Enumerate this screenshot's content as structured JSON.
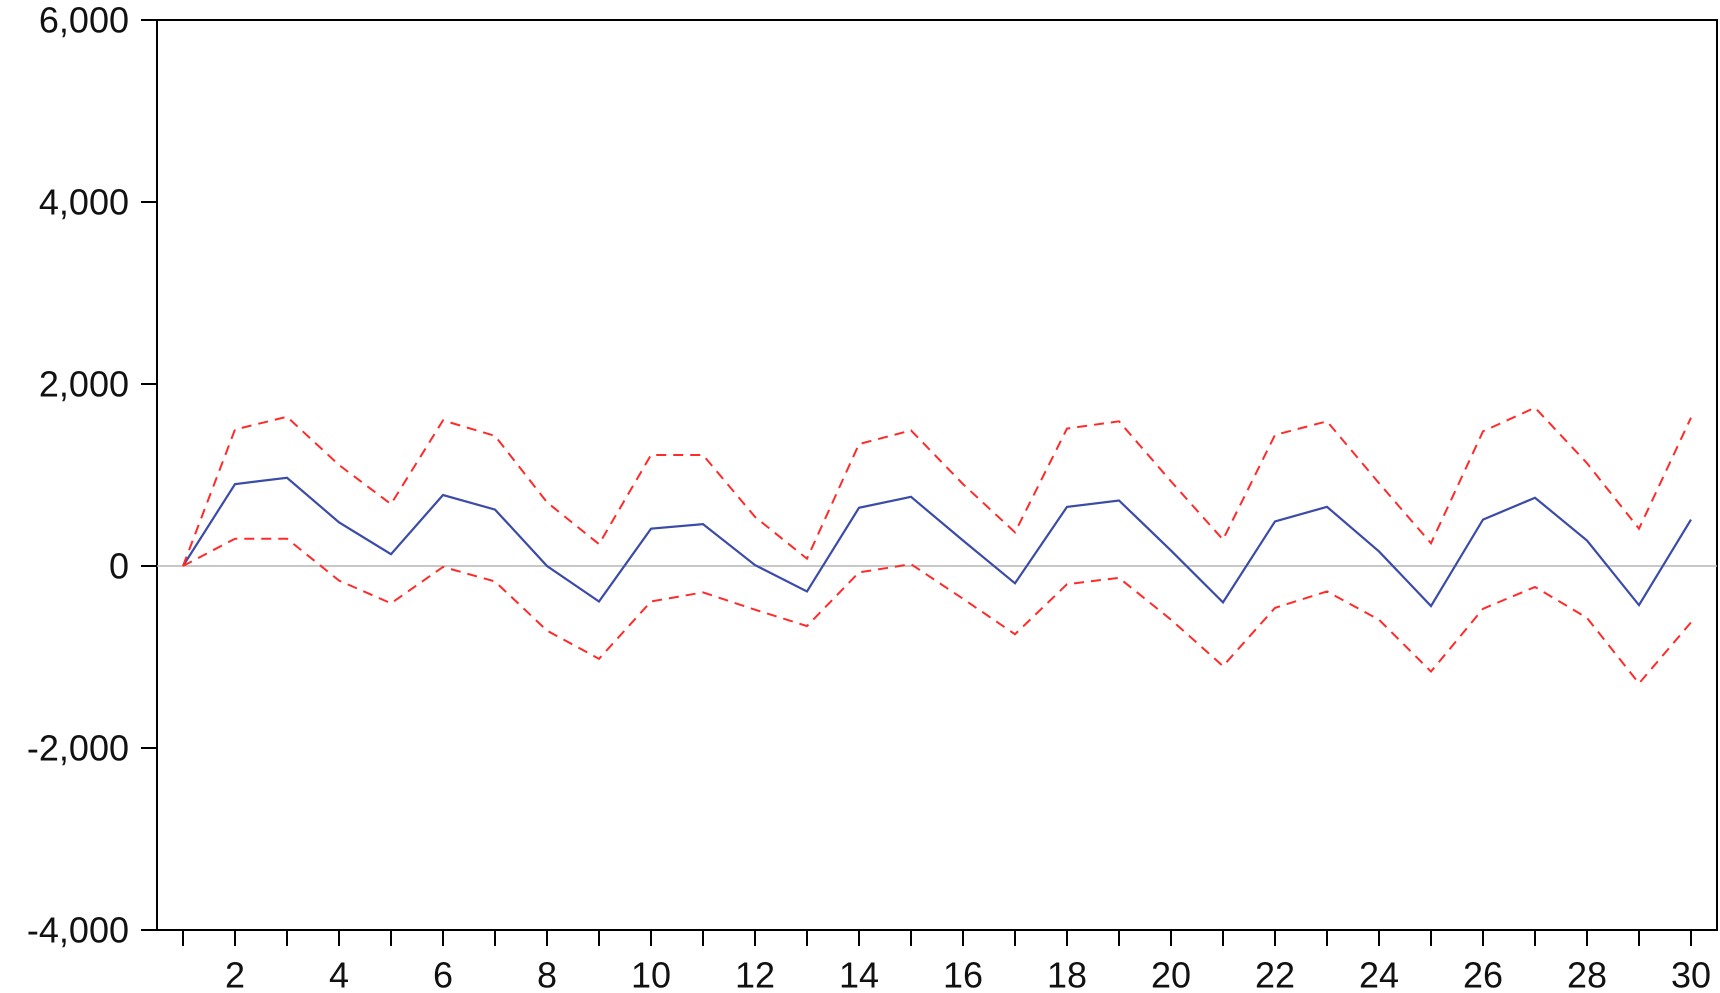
{
  "chart_data": {
    "type": "line",
    "title": "",
    "xlabel": "",
    "ylabel": "",
    "x": [
      1,
      2,
      3,
      4,
      5,
      6,
      7,
      8,
      9,
      10,
      11,
      12,
      13,
      14,
      15,
      16,
      17,
      18,
      19,
      20,
      21,
      22,
      23,
      24,
      25,
      26,
      27,
      28,
      29,
      30
    ],
    "xlim": [
      0.5,
      30.5
    ],
    "ylim": [
      -4000,
      6000
    ],
    "y_ticks": [
      -4000,
      -2000,
      0,
      2000,
      4000,
      6000
    ],
    "y_tick_labels": [
      "-4,000",
      "-2,000",
      "0",
      "2,000",
      "4,000",
      "6,000"
    ],
    "x_ticks": [
      2,
      4,
      6,
      8,
      10,
      12,
      14,
      16,
      18,
      20,
      22,
      24,
      26,
      28,
      30
    ],
    "x_tick_labels": [
      "2",
      "4",
      "6",
      "8",
      "10",
      "12",
      "14",
      "16",
      "18",
      "20",
      "22",
      "24",
      "26",
      "28",
      "30"
    ],
    "zero_line": true,
    "grid": false,
    "legend": "none",
    "series": [
      {
        "style": "solid",
        "color": "#3a4ba8",
        "values": [
          0,
          900,
          970,
          480,
          130,
          780,
          620,
          0,
          -390,
          410,
          460,
          10,
          -280,
          640,
          760,
          280,
          -190,
          650,
          720,
          170,
          -400,
          490,
          650,
          160,
          -440,
          510,
          750,
          280,
          -430,
          510
        ]
      },
      {
        "style": "dashed",
        "color": "#ff2a2a",
        "values": [
          0,
          1500,
          1640,
          1110,
          680,
          1600,
          1430,
          700,
          240,
          1220,
          1220,
          540,
          80,
          1340,
          1490,
          900,
          370,
          1510,
          1590,
          930,
          290,
          1440,
          1590,
          910,
          250,
          1480,
          1740,
          1130,
          410,
          1630
        ]
      },
      {
        "style": "dashed",
        "color": "#ff2a2a",
        "values": [
          0,
          300,
          300,
          -160,
          -410,
          -10,
          -170,
          -710,
          -1020,
          -390,
          -290,
          -480,
          -660,
          -70,
          20,
          -360,
          -750,
          -200,
          -130,
          -590,
          -1100,
          -460,
          -280,
          -590,
          -1160,
          -470,
          -230,
          -570,
          -1290,
          -620
        ]
      }
    ]
  }
}
